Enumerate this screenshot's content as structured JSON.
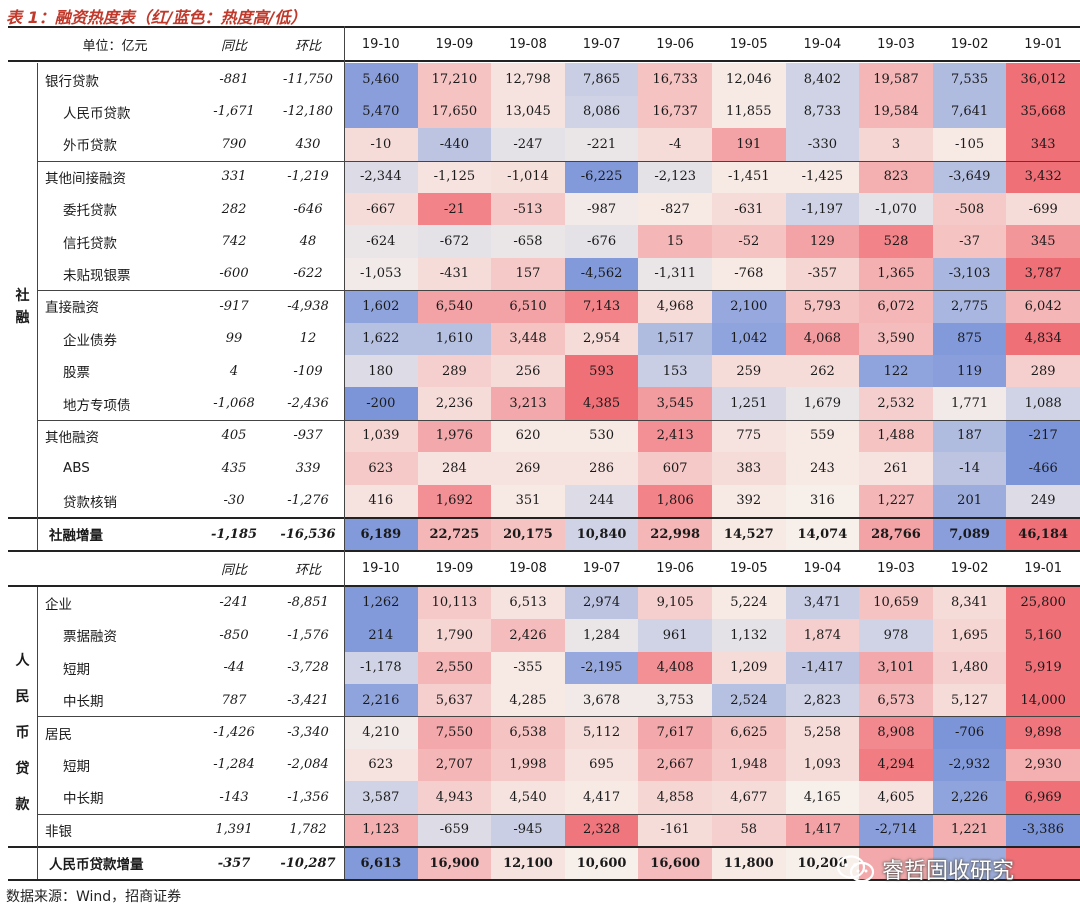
{
  "title": "表 1：融资热度表（红/蓝色：热度高/低）",
  "header": {
    "unit": "单位：亿元",
    "yoy": "同比",
    "mom": "环比",
    "months": [
      "19-10",
      "19-09",
      "19-08",
      "19-07",
      "19-06",
      "19-05",
      "19-04",
      "19-03",
      "19-02",
      "19-01"
    ]
  },
  "colors": {
    "hot": "#f07078",
    "cold": "#7590d8",
    "neutral": "#f7efea"
  },
  "side_labels": {
    "tsf": [
      "社",
      "融"
    ],
    "loans": [
      "人",
      "民",
      "币",
      "贷",
      "款"
    ]
  },
  "tsf_rows": [
    {
      "label": "银行贷款",
      "indent": 0,
      "yoy": "-881",
      "mom": "-11,750",
      "values": [
        "5,460",
        "17,210",
        "12,798",
        "7,865",
        "16,733",
        "12,046",
        "8,402",
        "19,587",
        "7,535",
        "36,012"
      ],
      "heat": [
        -0.85,
        0.35,
        0.1,
        -0.35,
        0.35,
        0.05,
        -0.3,
        0.45,
        -0.55,
        1.0
      ]
    },
    {
      "label": "人民币贷款",
      "indent": 1,
      "yoy": "-1,671",
      "mom": "-12,180",
      "values": [
        "5,470",
        "17,650",
        "13,045",
        "8,086",
        "16,737",
        "11,855",
        "8,733",
        "19,584",
        "7,641",
        "35,668"
      ],
      "heat": [
        -0.85,
        0.35,
        0.1,
        -0.3,
        0.35,
        0.05,
        -0.3,
        0.45,
        -0.55,
        1.0
      ]
    },
    {
      "label": "外币贷款",
      "indent": 1,
      "yoy": "790",
      "mom": "430",
      "values": [
        "-10",
        "-440",
        "-247",
        "-221",
        "-4",
        "191",
        "-330",
        "3",
        "-105",
        "343"
      ],
      "heat": [
        0.15,
        -0.45,
        -0.15,
        -0.1,
        0.15,
        0.6,
        -0.3,
        0.2,
        0.05,
        1.0
      ]
    },
    {
      "label": "其他间接融资",
      "indent": 0,
      "yoy": "331",
      "mom": "-1,219",
      "values": [
        "-2,344",
        "-1,125",
        "-1,014",
        "-6,225",
        "-2,123",
        "-1,451",
        "-1,425",
        "823",
        "-3,649",
        "3,432"
      ],
      "heat": [
        -0.2,
        0.1,
        0.12,
        -0.9,
        -0.15,
        0.05,
        0.05,
        0.5,
        -0.5,
        1.0
      ]
    },
    {
      "label": "委托贷款",
      "indent": 1,
      "yoy": "282",
      "mom": "-646",
      "values": [
        "-667",
        "-21",
        "-513",
        "-987",
        "-827",
        "-631",
        "-1,197",
        "-1,070",
        "-508",
        "-699"
      ],
      "heat": [
        0.15,
        0.85,
        0.3,
        -0.05,
        0.05,
        0.15,
        -0.3,
        -0.15,
        0.3,
        0.15
      ]
    },
    {
      "label": "信托贷款",
      "indent": 1,
      "yoy": "742",
      "mom": "48",
      "values": [
        "-624",
        "-672",
        "-658",
        "-676",
        "15",
        "-52",
        "129",
        "528",
        "-37",
        "345"
      ],
      "heat": [
        -0.1,
        -0.15,
        -0.1,
        -0.15,
        0.45,
        0.35,
        0.6,
        0.85,
        0.35,
        0.7
      ]
    },
    {
      "label": "未贴现银票",
      "indent": 1,
      "yoy": "-600",
      "mom": "-622",
      "values": [
        "-1,053",
        "-431",
        "157",
        "-4,562",
        "-1,311",
        "-768",
        "-357",
        "1,365",
        "-3,103",
        "3,787"
      ],
      "heat": [
        -0.05,
        0.15,
        0.3,
        -0.9,
        -0.1,
        0.05,
        0.2,
        0.5,
        -0.6,
        1.0
      ]
    },
    {
      "label": "直接融资",
      "indent": 0,
      "yoy": "-917",
      "mom": "-4,938",
      "values": [
        "1,602",
        "6,540",
        "6,510",
        "7,143",
        "4,968",
        "2,100",
        "5,793",
        "6,072",
        "2,775",
        "6,042"
      ],
      "heat": [
        -0.8,
        0.6,
        0.6,
        0.85,
        0.15,
        -0.75,
        0.35,
        0.45,
        -0.6,
        0.45
      ]
    },
    {
      "label": "企业债券",
      "indent": 1,
      "yoy": "99",
      "mom": "12",
      "values": [
        "1,622",
        "1,610",
        "3,448",
        "2,954",
        "1,517",
        "1,042",
        "4,068",
        "3,590",
        "875",
        "4,834"
      ],
      "heat": [
        -0.5,
        -0.5,
        0.35,
        0.15,
        -0.55,
        -0.8,
        0.65,
        0.4,
        -0.9,
        1.0
      ]
    },
    {
      "label": "股票",
      "indent": 1,
      "yoy": "4",
      "mom": "-109",
      "values": [
        "180",
        "289",
        "256",
        "593",
        "153",
        "259",
        "262",
        "122",
        "119",
        "289"
      ],
      "heat": [
        -0.2,
        0.25,
        0.15,
        1.0,
        -0.35,
        0.15,
        0.15,
        -0.8,
        -0.85,
        0.25
      ]
    },
    {
      "label": "地方专项债",
      "indent": 1,
      "yoy": "-1,068",
      "mom": "-2,436",
      "values": [
        "-200",
        "2,236",
        "3,213",
        "4,385",
        "3,545",
        "1,251",
        "1,679",
        "2,532",
        "1,771",
        "1,088"
      ],
      "heat": [
        -0.95,
        0.15,
        0.55,
        1.0,
        0.65,
        -0.25,
        -0.1,
        0.25,
        -0.05,
        -0.3
      ]
    },
    {
      "label": "其他融资",
      "indent": 0,
      "yoy": "405",
      "mom": "-937",
      "values": [
        "1,039",
        "1,976",
        "620",
        "530",
        "2,413",
        "775",
        "559",
        "1,488",
        "187",
        "-217"
      ],
      "heat": [
        0.2,
        0.55,
        0.05,
        0.05,
        0.75,
        0.1,
        0.05,
        0.35,
        -0.55,
        -0.95
      ]
    },
    {
      "label": "ABS",
      "indent": 1,
      "yoy": "435",
      "mom": "339",
      "values": [
        "623",
        "284",
        "269",
        "286",
        "607",
        "383",
        "243",
        "261",
        "-14",
        "-466"
      ],
      "heat": [
        0.3,
        0.1,
        0.1,
        0.1,
        0.3,
        0.15,
        0.05,
        0.1,
        -0.45,
        -0.95
      ]
    },
    {
      "label": "贷款核销",
      "indent": 1,
      "yoy": "-30",
      "mom": "-1,276",
      "values": [
        "416",
        "1,692",
        "351",
        "244",
        "1,806",
        "392",
        "316",
        "1,227",
        "201",
        "249"
      ],
      "heat": [
        0.1,
        0.75,
        0.05,
        -0.2,
        0.85,
        0.05,
        0.0,
        0.45,
        -0.7,
        -0.2
      ]
    }
  ],
  "tsf_total": {
    "label": "社融增量",
    "yoy": "-1,185",
    "mom": "-16,536",
    "values": [
      "6,189",
      "22,725",
      "20,175",
      "10,840",
      "22,998",
      "14,527",
      "14,074",
      "28,766",
      "7,089",
      "46,184"
    ],
    "heat": [
      -0.9,
      0.45,
      0.35,
      -0.3,
      0.45,
      0.05,
      0.0,
      0.6,
      -0.85,
      1.0
    ]
  },
  "loan_rows": [
    {
      "label": "企业",
      "indent": 0,
      "yoy": "-241",
      "mom": "-8,851",
      "values": [
        "1,262",
        "10,113",
        "6,513",
        "2,974",
        "9,105",
        "5,224",
        "3,471",
        "10,659",
        "8,341",
        "25,800"
      ],
      "heat": [
        -0.9,
        0.3,
        0.1,
        -0.45,
        0.25,
        0.05,
        -0.35,
        0.35,
        0.15,
        1.0
      ]
    },
    {
      "label": "票据融资",
      "indent": 1,
      "yoy": "-850",
      "mom": "-1,576",
      "values": [
        "214",
        "1,790",
        "2,426",
        "1,284",
        "961",
        "1,132",
        "1,874",
        "978",
        "1,695",
        "5,160"
      ],
      "heat": [
        -0.9,
        0.2,
        0.4,
        -0.1,
        -0.3,
        -0.15,
        0.25,
        -0.3,
        0.2,
        1.0
      ]
    },
    {
      "label": "短期",
      "indent": 1,
      "yoy": "-44",
      "mom": "-3,728",
      "values": [
        "-1,178",
        "2,550",
        "-355",
        "-2,195",
        "4,408",
        "1,209",
        "-1,417",
        "3,101",
        "1,480",
        "5,919"
      ],
      "heat": [
        -0.3,
        0.45,
        0.05,
        -0.75,
        0.75,
        0.15,
        -0.45,
        0.55,
        0.25,
        1.0
      ]
    },
    {
      "label": "中长期",
      "indent": 1,
      "yoy": "787",
      "mom": "-3,421",
      "values": [
        "2,216",
        "5,637",
        "4,285",
        "3,678",
        "3,753",
        "2,524",
        "2,823",
        "6,573",
        "5,127",
        "14,000"
      ],
      "heat": [
        -0.8,
        0.25,
        0.05,
        -0.05,
        -0.05,
        -0.5,
        -0.3,
        0.4,
        0.15,
        1.0
      ]
    },
    {
      "label": "居民",
      "indent": 0,
      "yoy": "-1,426",
      "mom": "-3,340",
      "values": [
        "4,210",
        "7,550",
        "6,538",
        "5,112",
        "7,617",
        "6,625",
        "5,258",
        "8,908",
        "-706",
        "9,898"
      ],
      "heat": [
        -0.05,
        0.55,
        0.35,
        0.15,
        0.55,
        0.35,
        0.15,
        0.8,
        -0.95,
        0.95
      ]
    },
    {
      "label": "短期",
      "indent": 1,
      "yoy": "-1,284",
      "mom": "-2,084",
      "values": [
        "623",
        "2,707",
        "1,998",
        "695",
        "2,667",
        "1,948",
        "1,093",
        "4,294",
        "-2,932",
        "2,930"
      ],
      "heat": [
        0.1,
        0.45,
        0.3,
        0.1,
        0.45,
        0.3,
        0.15,
        0.9,
        -0.9,
        0.5
      ]
    },
    {
      "label": "中长期",
      "indent": 1,
      "yoy": "-143",
      "mom": "-1,356",
      "values": [
        "3,587",
        "4,943",
        "4,540",
        "4,417",
        "4,858",
        "4,677",
        "4,165",
        "4,605",
        "2,226",
        "6,969"
      ],
      "heat": [
        -0.3,
        0.25,
        0.1,
        0.05,
        0.2,
        0.15,
        0.0,
        0.1,
        -0.8,
        1.0
      ]
    },
    {
      "label": "非银",
      "indent": 0,
      "yoy": "1,391",
      "mom": "1,782",
      "values": [
        "1,123",
        "-659",
        "-945",
        "2,328",
        "-161",
        "58",
        "1,417",
        "-2,714",
        "1,221",
        "-3,386"
      ],
      "heat": [
        0.5,
        -0.2,
        -0.35,
        0.95,
        0.15,
        0.25,
        0.6,
        -0.85,
        0.5,
        -0.95
      ]
    }
  ],
  "loan_total": {
    "label": "人民币贷款增量",
    "yoy": "-357",
    "mom": "-10,287",
    "values": [
      "6,613",
      "16,900",
      "12,100",
      "10,600",
      "16,600",
      "11,800",
      "10,200",
      "",
      "",
      ""
    ],
    "heat": [
      -0.9,
      0.4,
      0.1,
      0.0,
      0.4,
      0.05,
      0.0,
      0.55,
      -0.7,
      1.0
    ]
  },
  "source": "数据来源：Wind，招商证券",
  "watermark": "睿哲固收研究"
}
